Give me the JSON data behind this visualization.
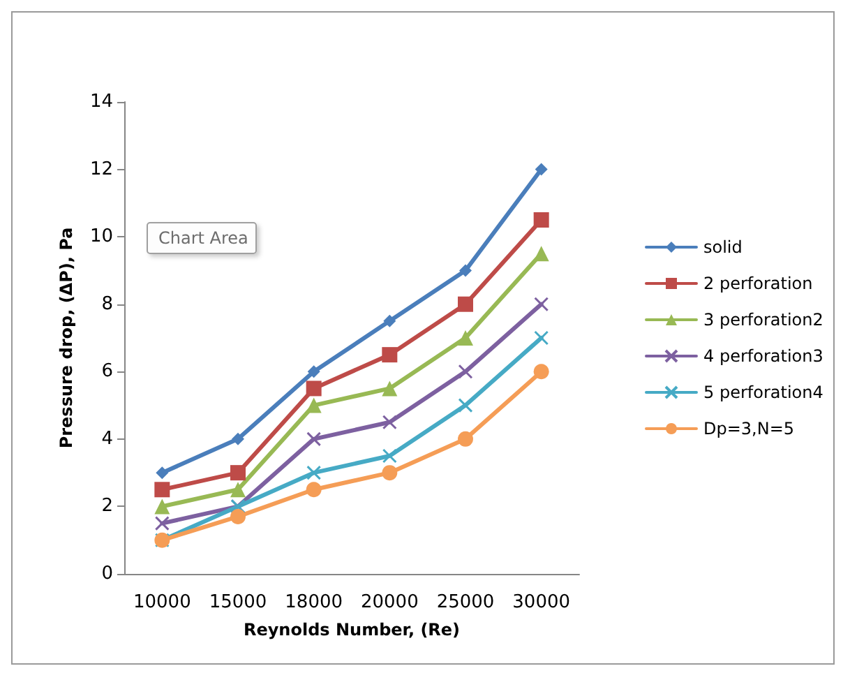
{
  "chart_data": {
    "type": "line",
    "xlabel": "Reynolds Number, (Re)",
    "ylabel": "Pressure drop, (ΔP), Pa",
    "categories": [
      "10000",
      "15000",
      "18000",
      "20000",
      "25000",
      "30000"
    ],
    "series": [
      {
        "name": "solid",
        "color": "#4a7ebb",
        "marker": "diamond",
        "values": [
          3,
          4,
          6,
          7.5,
          9,
          12
        ]
      },
      {
        "name": "2 perforation",
        "color": "#be4b48",
        "marker": "square",
        "values": [
          2.5,
          3,
          5.5,
          6.5,
          8,
          10.5
        ]
      },
      {
        "name": "3 perforation2",
        "color": "#98b954",
        "marker": "triangle",
        "values": [
          2,
          2.5,
          5,
          5.5,
          7,
          9.5
        ]
      },
      {
        "name": "4 perforation3",
        "color": "#7d60a0",
        "marker": "cross",
        "values": [
          1.5,
          2,
          4,
          4.5,
          6,
          8
        ]
      },
      {
        "name": "5 perforation4",
        "color": "#46aac5",
        "marker": "cross",
        "values": [
          1,
          2,
          3,
          3.5,
          5,
          7
        ]
      },
      {
        "name": "Dp=3,N=5",
        "color": "#f59d56",
        "marker": "circle",
        "values": [
          1,
          1.7,
          2.5,
          3,
          4,
          6
        ]
      }
    ],
    "ylim": [
      0,
      14
    ],
    "yticks": [
      0,
      2,
      4,
      6,
      8,
      10,
      12,
      14
    ],
    "grid": false,
    "legend": "right",
    "annotations": [
      "Chart Area"
    ]
  }
}
